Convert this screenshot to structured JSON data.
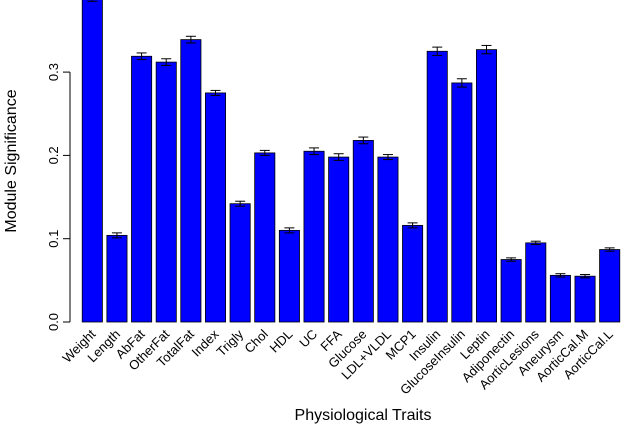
{
  "chart_data": {
    "type": "bar",
    "title": "",
    "xlabel": "Physiological Traits",
    "ylabel": "Module Significance",
    "ylim": [
      0,
      0.39
    ],
    "yticks": [
      0.0,
      0.1,
      0.2,
      0.3
    ],
    "ytick_labels": [
      "0.0",
      "0.1",
      "0.2",
      "0.3"
    ],
    "grid": false,
    "bar_color": "#0000ff",
    "categories": [
      "Weight",
      "Length",
      "AbFat",
      "OtherFat",
      "TotalFat",
      "Index",
      "Trigly",
      "Chol",
      "HDL",
      "UC",
      "FFA",
      "Glucose",
      "LDL+VLDL",
      "MCP1",
      "Insulin",
      "GlucoseInsulin",
      "Leptin",
      "Adiponectin",
      "AorticLesions",
      "Aneurysm",
      "AorticCal.M",
      "AorticCal.L"
    ],
    "values": [
      0.389,
      0.104,
      0.319,
      0.312,
      0.339,
      0.275,
      0.142,
      0.203,
      0.11,
      0.205,
      0.198,
      0.218,
      0.198,
      0.116,
      0.325,
      0.287,
      0.327,
      0.075,
      0.095,
      0.056,
      0.055,
      0.087
    ],
    "errors": [
      0.004,
      0.003,
      0.004,
      0.004,
      0.004,
      0.003,
      0.003,
      0.003,
      0.003,
      0.004,
      0.004,
      0.004,
      0.003,
      0.003,
      0.005,
      0.005,
      0.005,
      0.002,
      0.002,
      0.002,
      0.002,
      0.002
    ]
  }
}
